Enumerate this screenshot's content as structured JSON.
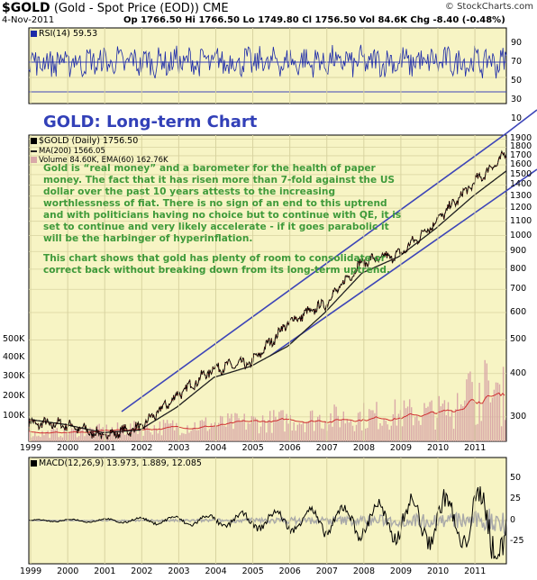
{
  "header": {
    "symbol": "$GOLD",
    "description": "(Gold - Spot Price (EOD))",
    "exchange": "CME",
    "date": "4-Nov-2011",
    "quote": "Op 1766.50  Hi 1766.50  Lo 1749.80  Cl 1756.50  Vol 84.6K  Chg -8.40 (-0.48%)",
    "brand": "© StockCharts.com"
  },
  "rsi_panel": {
    "legend": "RSI(14) 59.53",
    "levels": [
      90,
      70,
      50,
      30,
      10
    ],
    "overbought": 70,
    "oversold": 30
  },
  "price_panel": {
    "legend_price": "$GOLD (Daily) 1756.50",
    "legend_ma": "MA(200) 1566.05",
    "legend_volume": "Volume 84.60K, EMA(60) 162.76K",
    "annotation_title": "GOLD: Long-term Chart",
    "annotation_para1": "Gold is “real money” and a barometer for the health of paper money. The fact that it has risen more than 7-fold against the US dollar over the past 10 years attests to the increasing worthlessness of fiat. There is no sign of an end to this uptrend and with politicians having no choice but to continue with QE, it is set to continue and very likely accelerate - if it goes parabolic it will be the harbinger of hyperinflation.",
    "annotation_para2": "This chart shows that gold has plenty of room to consolidate or correct back without breaking down from its long-term uptrend.",
    "price_ticks": [
      "1900",
      "1800",
      "1700",
      "1600",
      "1500",
      "1400",
      "1300",
      "1200",
      "1100",
      "1000",
      "900",
      "800",
      "700",
      "600",
      "500",
      "400",
      "300"
    ],
    "volume_ticks": [
      "500K",
      "400K",
      "300K",
      "200K",
      "100K"
    ]
  },
  "macd_panel": {
    "legend": "MACD(12,26,9) 13.973, 1.889, 12.085",
    "ticks": [
      "50",
      "25",
      "0",
      "-25"
    ]
  },
  "x_axis": [
    "1999",
    "2000",
    "2001",
    "2002",
    "2003",
    "2004",
    "2005",
    "2006",
    "2007",
    "2008",
    "2009",
    "2010",
    "2011"
  ],
  "colors": {
    "panel_bg": "#f7f4c4",
    "grid": "#d8d3a0",
    "trend_lines": "#3d45b8",
    "price": "#000000",
    "ma": "#202020",
    "volume": "#d9a8a8",
    "volume_ema": "#d03030",
    "annotation_title": "#3240b8",
    "annotation_text": "#3f9a3a"
  },
  "chart_data": {
    "type": "line",
    "scale": "log",
    "x": [
      "1999",
      "2000",
      "2001",
      "2002",
      "2003",
      "2004",
      "2005",
      "2006",
      "2007",
      "2008",
      "2009",
      "2010",
      "2011",
      "2011-11"
    ],
    "series": [
      {
        "name": "$GOLD (Daily)",
        "values": [
          287,
          285,
          265,
          279,
          345,
          415,
          428,
          560,
          635,
          840,
          880,
          1100,
          1410,
          1756.5
        ]
      },
      {
        "name": "MA(200)",
        "values": [
          295,
          285,
          270,
          275,
          320,
          390,
          420,
          480,
          600,
          780,
          870,
          1050,
          1300,
          1566.05
        ]
      }
    ],
    "ylim": [
      255,
      1950
    ],
    "rsi_last": 59.53,
    "macd": {
      "macd": 13.973,
      "signal": 1.889,
      "histogram": 12.085
    },
    "volume_last": "84.60K",
    "volume_ema60": "162.76K",
    "legend": "top-left",
    "grid": true
  }
}
